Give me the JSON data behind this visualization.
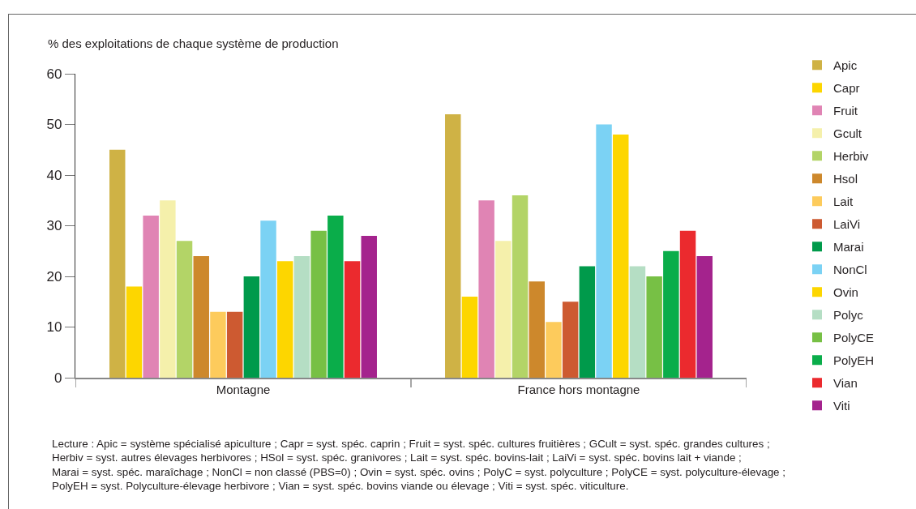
{
  "chart_data": {
    "type": "bar",
    "ylabel": "% des exploitations de chaque système de production",
    "categories": [
      "Montagne",
      "France hors montagne"
    ],
    "series": [
      {
        "name": "Apic",
        "color": "#cfb245",
        "values": [
          45,
          52
        ]
      },
      {
        "name": "Capr",
        "color": "#fdd600",
        "values": [
          18,
          16
        ]
      },
      {
        "name": "Fruit",
        "color": "#e084b4",
        "values": [
          32,
          35
        ]
      },
      {
        "name": "Gcult",
        "color": "#f5f0ab",
        "values": [
          35,
          27
        ]
      },
      {
        "name": "Herbiv",
        "color": "#b3d467",
        "values": [
          27,
          36
        ]
      },
      {
        "name": "Hsol",
        "color": "#cd882c",
        "values": [
          24,
          19
        ]
      },
      {
        "name": "Lait",
        "color": "#fdcb5c",
        "values": [
          13,
          11
        ]
      },
      {
        "name": "LaiVi",
        "color": "#cd5a31",
        "values": [
          13,
          15
        ]
      },
      {
        "name": "Marai",
        "color": "#009a4b",
        "values": [
          20,
          22
        ]
      },
      {
        "name": "NonCl",
        "color": "#7bd2f4",
        "values": [
          31,
          50
        ]
      },
      {
        "name": "Ovin",
        "color": "#fdd600",
        "values": [
          23,
          48
        ]
      },
      {
        "name": "Polyc",
        "color": "#b5dec4",
        "values": [
          24,
          22
        ]
      },
      {
        "name": "PolyCE",
        "color": "#77c045",
        "values": [
          29,
          20
        ]
      },
      {
        "name": "PolyEH",
        "color": "#0aad4a",
        "values": [
          32,
          25
        ]
      },
      {
        "name": "Vian",
        "color": "#eb2a2e",
        "values": [
          23,
          29
        ]
      },
      {
        "name": "Viti",
        "color": "#a4238d",
        "values": [
          28,
          24
        ]
      }
    ],
    "ylim": [
      0,
      60
    ],
    "yticks": [
      0,
      10,
      20,
      30,
      40,
      50,
      60
    ],
    "legend": "right",
    "annotations": [
      "Lecture : Apic = système spécialisé apiculture ; Capr = syst. spéc. caprin ; Fruit = syst. spéc. cultures fruitières ; GCult = syst. spéc. grandes cultures ;\nHerbiv = syst. autres élevages herbivores ; HSol = syst. spéc. granivores ; Lait = syst. spéc. bovins-lait ; LaiVi = syst. spéc. bovins lait + viande ;\nMarai = syst. spéc. maraîchage ; NonCl = non classé (PBS=0) ; Ovin = syst. spéc. ovins ; PolyC = syst. polyculture ; PolyCE = syst. polyculture-élevage ;\nPolyEH = syst. Polyculture-élevage herbivore ; Vian = syst. spéc. bovins viande ou élevage ; Viti = syst. spéc. viticulture."
    ]
  }
}
